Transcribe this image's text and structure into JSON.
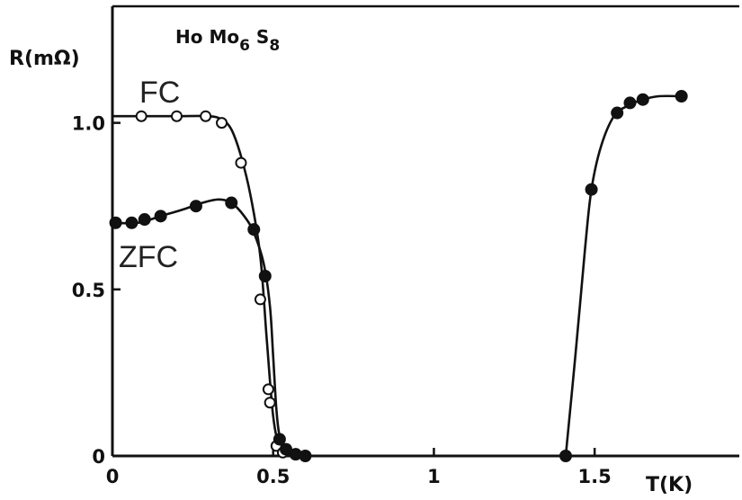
{
  "chart_data": {
    "type": "scatter",
    "title": "",
    "annotation": {
      "base": "Ho Mo",
      "sub1": "6",
      "mid": " S",
      "sub2": "8"
    },
    "xlabel": "T(K)",
    "ylabel": "R(mΩ)",
    "xlim": [
      0,
      1.95
    ],
    "ylim": [
      0,
      1.35
    ],
    "x_ticks": [
      {
        "value": 0,
        "label": "0"
      },
      {
        "value": 0.5,
        "label": "0.5"
      },
      {
        "value": 1,
        "label": "1"
      },
      {
        "value": 1.5,
        "label": "1.5"
      }
    ],
    "y_ticks": [
      {
        "value": 0,
        "label": "0"
      },
      {
        "value": 0.5,
        "label": "0.5"
      },
      {
        "value": 1.0,
        "label": "1.0"
      }
    ],
    "grid": false,
    "colors": {
      "ink": "#111111",
      "label": "#222222"
    },
    "series": [
      {
        "name": "FC",
        "marker": "open-circle",
        "points": [
          [
            0.09,
            1.02
          ],
          [
            0.2,
            1.02
          ],
          [
            0.29,
            1.02
          ],
          [
            0.34,
            1.0
          ],
          [
            0.4,
            0.88
          ],
          [
            0.46,
            0.47
          ],
          [
            0.485,
            0.2
          ],
          [
            0.49,
            0.16
          ],
          [
            0.51,
            0.03
          ],
          [
            0.53,
            0.01
          ]
        ],
        "curve": [
          [
            0,
            1.02
          ],
          [
            0.1,
            1.02
          ],
          [
            0.2,
            1.02
          ],
          [
            0.3,
            1.02
          ],
          [
            0.34,
            1.01
          ],
          [
            0.37,
            0.98
          ],
          [
            0.4,
            0.9
          ],
          [
            0.43,
            0.78
          ],
          [
            0.46,
            0.6
          ],
          [
            0.48,
            0.35
          ],
          [
            0.5,
            0.12
          ],
          [
            0.52,
            0.03
          ],
          [
            0.55,
            0.005
          ],
          [
            0.57,
            0.0
          ]
        ]
      },
      {
        "name": "ZFC",
        "marker": "filled-circle",
        "points": [
          [
            0.01,
            0.7
          ],
          [
            0.06,
            0.7
          ],
          [
            0.1,
            0.71
          ],
          [
            0.15,
            0.72
          ],
          [
            0.26,
            0.75
          ],
          [
            0.37,
            0.76
          ],
          [
            0.44,
            0.68
          ],
          [
            0.475,
            0.54
          ],
          [
            0.52,
            0.05
          ],
          [
            0.54,
            0.02
          ],
          [
            0.57,
            0.005
          ],
          [
            0.6,
            0.0
          ],
          [
            1.41,
            0.0
          ],
          [
            1.49,
            0.8
          ],
          [
            1.57,
            1.03
          ],
          [
            1.61,
            1.06
          ],
          [
            1.65,
            1.07
          ],
          [
            1.77,
            1.08
          ]
        ],
        "curve_low": [
          [
            0,
            0.7
          ],
          [
            0.08,
            0.7
          ],
          [
            0.15,
            0.72
          ],
          [
            0.22,
            0.74
          ],
          [
            0.28,
            0.76
          ],
          [
            0.33,
            0.77
          ],
          [
            0.37,
            0.76
          ],
          [
            0.41,
            0.72
          ],
          [
            0.44,
            0.67
          ],
          [
            0.47,
            0.58
          ],
          [
            0.49,
            0.45
          ],
          [
            0.5,
            0.3
          ],
          [
            0.51,
            0.14
          ],
          [
            0.52,
            0.06
          ],
          [
            0.54,
            0.02
          ],
          [
            0.57,
            0.005
          ],
          [
            0.6,
            0.0
          ]
        ],
        "curve_high": [
          [
            1.41,
            0.0
          ],
          [
            1.44,
            0.3
          ],
          [
            1.47,
            0.62
          ],
          [
            1.49,
            0.8
          ],
          [
            1.52,
            0.93
          ],
          [
            1.56,
            1.02
          ],
          [
            1.6,
            1.05
          ],
          [
            1.65,
            1.07
          ],
          [
            1.7,
            1.08
          ],
          [
            1.77,
            1.08
          ]
        ]
      }
    ]
  }
}
